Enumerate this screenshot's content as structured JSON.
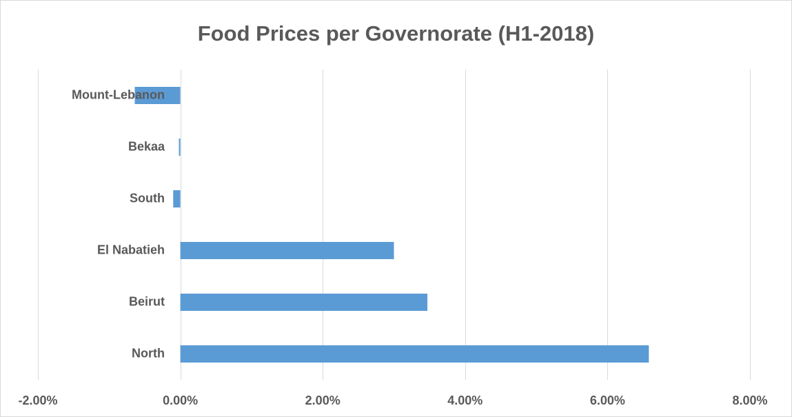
{
  "chart_data": {
    "type": "bar",
    "orientation": "horizontal",
    "title": "Food Prices per Governorate (H1-2018)",
    "xlabel": "",
    "ylabel": "",
    "categories": [
      "Mount-Lebanon",
      "Bekaa",
      "South",
      "El Nabatieh",
      "Beirut",
      "North"
    ],
    "values": [
      -0.0064,
      -0.0002,
      -0.001,
      0.03,
      0.0347,
      0.0658
    ],
    "xlim": [
      -0.02,
      0.08
    ],
    "x_ticks": [
      -0.02,
      0.0,
      0.02,
      0.04,
      0.06,
      0.08
    ],
    "x_tick_labels": [
      "-2.00%",
      "0.00%",
      "2.00%",
      "4.00%",
      "6.00%",
      "8.00%"
    ],
    "grid": "vertical",
    "legend": "none",
    "bar_color": "#5b9bd5",
    "grid_color": "#d9d9d9"
  }
}
